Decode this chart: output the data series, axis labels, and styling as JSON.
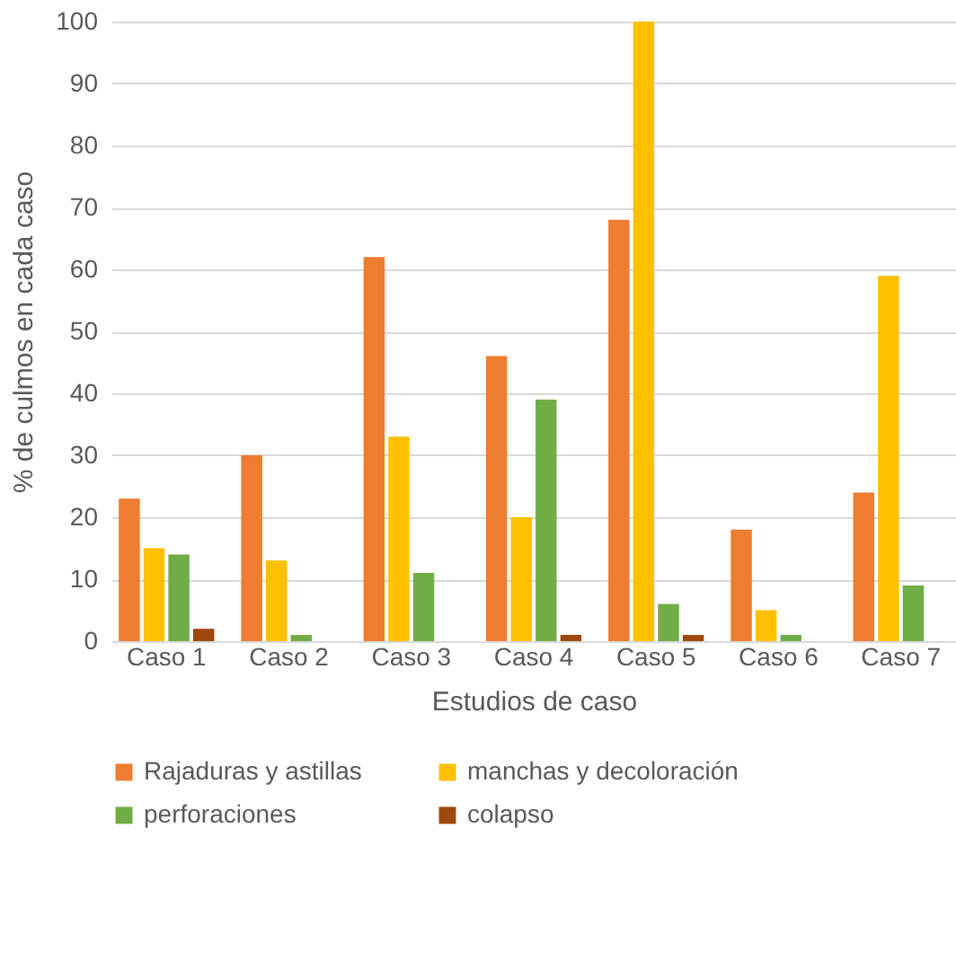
{
  "chart_data": {
    "type": "bar",
    "xlabel": "Estudios de caso",
    "ylabel": "% de culmos en cada caso",
    "categories": [
      "Caso 1",
      "Caso 2",
      "Caso 3",
      "Caso 4",
      "Caso 5",
      "Caso 6",
      "Caso 7"
    ],
    "series": [
      {
        "name": "Rajaduras y astillas",
        "color": "#ed7d31",
        "values": [
          23,
          30,
          62,
          46,
          68,
          18,
          24
        ]
      },
      {
        "name": "manchas y decoloración",
        "color": "#ffc000",
        "values": [
          15,
          13,
          33,
          20,
          100,
          5,
          59
        ]
      },
      {
        "name": "perforaciones",
        "color": "#70ad47",
        "values": [
          14,
          1,
          11,
          39,
          6,
          1,
          9
        ]
      },
      {
        "name": "colapso",
        "color": "#9e480e",
        "values": [
          2,
          null,
          null,
          1,
          1,
          null,
          null
        ]
      }
    ],
    "ylim": [
      0,
      100
    ],
    "yticks": [
      0,
      10,
      20,
      30,
      40,
      50,
      60,
      70,
      80,
      90,
      100
    ],
    "grid": "y",
    "legend": "bottom"
  }
}
